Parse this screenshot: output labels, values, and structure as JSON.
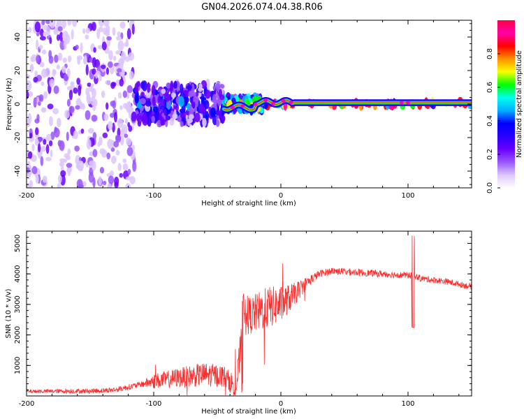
{
  "title": "GN04.2026.074.04.38.R06",
  "colors": {
    "spectrogram_ramp": [
      "#ffffff",
      "#dcc6ff",
      "#9955ff",
      "#6a00ff",
      "#2a00ff",
      "#0000ff",
      "#00b0ff",
      "#00ffee",
      "#00ff00",
      "#f8ff00",
      "#ff9000",
      "#ff0000",
      "#ff00aa",
      "#ff0044"
    ],
    "snr_line": "#ff2a2a"
  },
  "chart_data": [
    {
      "type": "heatmap",
      "name": "spectrogram",
      "xlabel": "Height of straight line (km)",
      "ylabel": "Frequency (Hz)",
      "xlim": [
        -200,
        150
      ],
      "ylim": [
        -50,
        50
      ],
      "xticks": [
        -200,
        -100,
        0,
        100
      ],
      "yticks": [
        -40,
        -20,
        0,
        20,
        40
      ],
      "xtick_labels": [
        "-200",
        "-100",
        "0",
        "100"
      ],
      "ytick_labels": [
        "-40",
        "-20",
        "0",
        "20",
        "40"
      ],
      "colorbar": {
        "label": "Normalized spectral amplitude",
        "range": [
          0,
          1
        ],
        "ticks": [
          0.0,
          0.2,
          0.4,
          0.6,
          0.8
        ],
        "tick_labels": [
          "0.0",
          "0.2",
          "0.4",
          "0.6",
          "0.8"
        ]
      },
      "regions": [
        {
          "x_range": [
            -200,
            -115
          ],
          "freq_spread_hz": 50,
          "amplitude": 0.08,
          "description": "diffuse"
        },
        {
          "x_range": [
            -115,
            -45
          ],
          "freq_spread_hz": 12,
          "amplitude": 0.3
        },
        {
          "x_range": [
            -45,
            -15
          ],
          "freq_spread_hz": 4,
          "amplitude": 0.55
        },
        {
          "x_range": [
            -15,
            150
          ],
          "freq_spread_hz": 1.5,
          "amplitude": 0.95
        }
      ]
    },
    {
      "type": "line",
      "name": "snr",
      "xlabel": "Height of straight line (km)",
      "ylabel": "SNR (10 * v/v)",
      "xlim": [
        -200,
        150
      ],
      "ylim": [
        0,
        5400
      ],
      "xticks": [
        -200,
        -100,
        0,
        100
      ],
      "yticks": [
        1000,
        2000,
        3000,
        4000,
        5000
      ],
      "xtick_labels": [
        "-200",
        "-100",
        "0",
        "100"
      ],
      "ytick_labels": [
        "1000",
        "2000",
        "3000",
        "4000",
        "5000"
      ],
      "series": [
        {
          "name": "SNR",
          "envelope_x": [
            -200,
            -150,
            -130,
            -110,
            -100,
            -80,
            -60,
            -45,
            -35,
            -30,
            -28,
            -20,
            -10,
            0,
            10,
            20,
            30,
            40,
            60,
            80,
            100,
            104,
            110,
            130,
            150
          ],
          "envelope_y": [
            150,
            160,
            200,
            380,
            480,
            600,
            700,
            650,
            300,
            2200,
            2600,
            2700,
            2900,
            3000,
            3300,
            3700,
            4000,
            4100,
            4050,
            4000,
            3950,
            3950,
            3850,
            3750,
            3580
          ],
          "noise_x": [
            -200,
            -110,
            -100,
            -60,
            -40,
            -30,
            -10,
            0,
            20,
            30,
            150
          ],
          "noise_amp": [
            60,
            100,
            250,
            400,
            350,
            600,
            700,
            600,
            200,
            120,
            100
          ]
        }
      ]
    }
  ]
}
